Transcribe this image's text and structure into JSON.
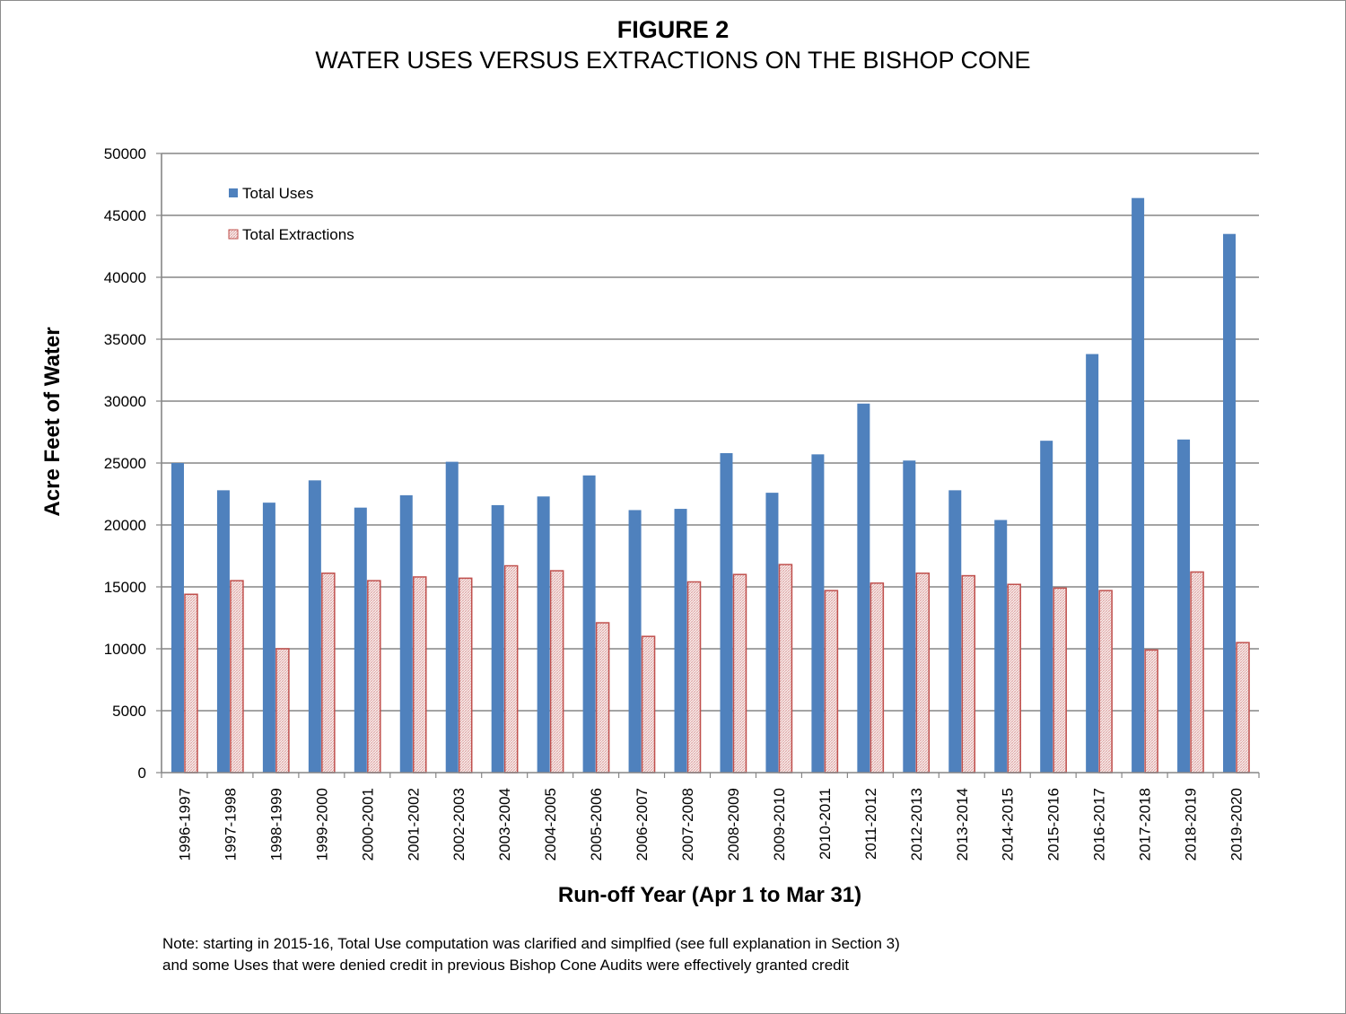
{
  "figure": {
    "title": "FIGURE 2",
    "subtitle": "WATER USES VERSUS EXTRACTIONS ON THE BISHOP CONE"
  },
  "note": {
    "line1": "Note: starting in 2015-16,  Total Use computation was clarified and simplfied (see full explanation in Section 3)",
    "line2": "and some Uses that were  denied credit in previous Bishop Cone Audits were effectively granted credit"
  },
  "chart_data": {
    "type": "bar",
    "title": "FIGURE 2",
    "subtitle": "WATER USES VERSUS EXTRACTIONS ON THE BISHOP CONE",
    "xlabel": "Run-off Year (Apr 1 to Mar 31)",
    "ylabel": "Acre Feet of Water",
    "ylim": [
      0,
      50000
    ],
    "yticks": [
      0,
      5000,
      10000,
      15000,
      20000,
      25000,
      30000,
      35000,
      40000,
      45000,
      50000
    ],
    "grid": true,
    "legend_position": "top-left",
    "categories": [
      "1996-1997",
      "1997-1998",
      "1998-1999",
      "1999-2000",
      "2000-2001",
      "2001-2002",
      "2002-2003",
      "2003-2004",
      "2004-2005",
      "2005-2006",
      "2006-2007",
      "2007-2008",
      "2008-2009",
      "2009-2010",
      "2010-2011",
      "2011-2012",
      "2012-2013",
      "2013-2014",
      "2014-2015",
      "2015-2016",
      "2016-2017",
      "2017-2018",
      "2018-2019",
      "2019-2020"
    ],
    "series": [
      {
        "name": "Total Uses",
        "color": "#4f81bd",
        "values": [
          25000,
          22800,
          21800,
          23600,
          21400,
          22400,
          25100,
          21600,
          22300,
          24000,
          21200,
          21300,
          25800,
          22600,
          25700,
          29800,
          25200,
          22800,
          20400,
          26800,
          33800,
          46400,
          26900,
          43500
        ]
      },
      {
        "name": "Total Extractions",
        "color": "#c0504d",
        "pattern": "hatched",
        "values": [
          14400,
          15500,
          10000,
          16100,
          15500,
          15800,
          15700,
          16700,
          16300,
          12100,
          11000,
          15400,
          16000,
          16800,
          14700,
          15300,
          16100,
          15900,
          15200,
          14900,
          14700,
          9900,
          16200,
          10500
        ]
      }
    ]
  }
}
